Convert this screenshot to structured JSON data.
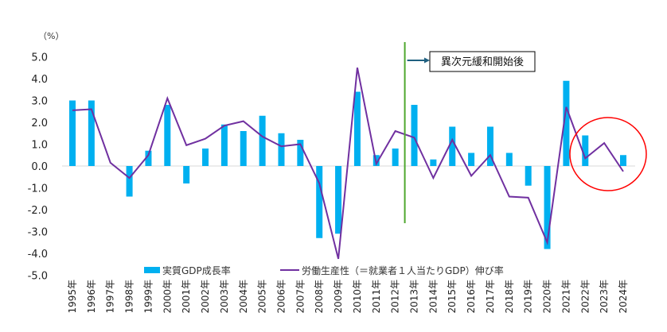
{
  "chart_data": {
    "type": "bar+line",
    "unit_label": "（%）",
    "ylim": [
      -5.0,
      5.0
    ],
    "yticks": [
      "5.0",
      "4.0",
      "3.0",
      "2.0",
      "1.0",
      "0.0",
      "-1.0",
      "-2.0",
      "-3.0",
      "-4.0",
      "-5.0"
    ],
    "ytick_values": [
      5,
      4,
      3,
      2,
      1,
      0,
      -1,
      -2,
      -3,
      -4,
      -5
    ],
    "categories": [
      "1995年",
      "1996年",
      "1997年",
      "1998年",
      "1999年",
      "2000年",
      "2001年",
      "2002年",
      "2003年",
      "2004年",
      "2005年",
      "2006年",
      "2007年",
      "2008年",
      "2009年",
      "2010年",
      "2011年",
      "2012年",
      "2013年",
      "2014年",
      "2015年",
      "2016年",
      "2017年",
      "2018年",
      "2019年",
      "2020年",
      "2021年",
      "2022年",
      "2023年",
      "2024年"
    ],
    "series": [
      {
        "name": "実質GDP成長率",
        "type": "bar",
        "color": "#00b0f0",
        "values": [
          3.0,
          3.0,
          0.0,
          -1.4,
          0.7,
          2.8,
          -0.8,
          0.8,
          1.9,
          1.6,
          2.3,
          1.5,
          1.2,
          -3.3,
          -3.1,
          3.4,
          0.5,
          0.8,
          2.8,
          0.3,
          1.8,
          0.6,
          1.8,
          0.6,
          -0.9,
          -3.8,
          3.9,
          1.4,
          0.0,
          0.5
        ]
      },
      {
        "name": "労働生産性（＝就業者１人当たりGDP）伸び率",
        "type": "line",
        "color": "#7030a0",
        "values": [
          2.55,
          2.6,
          0.15,
          -0.55,
          0.5,
          3.1,
          0.95,
          1.25,
          1.85,
          2.05,
          1.35,
          0.9,
          1.0,
          -0.8,
          -4.25,
          4.5,
          0.1,
          1.6,
          1.3,
          -0.55,
          1.2,
          -0.45,
          0.5,
          -1.4,
          -1.45,
          -3.5,
          2.7,
          0.35,
          1.05,
          -0.25
        ]
      }
    ],
    "annotations": [
      {
        "text": "異次元緩和開始後",
        "marker": "vertical line between 2012年 and 2013年",
        "color": "#4ea72e"
      },
      {
        "marker": "red circle around 2022年-2024年",
        "color": "#ff0000"
      }
    ],
    "legend": "bottom",
    "grid": false
  }
}
